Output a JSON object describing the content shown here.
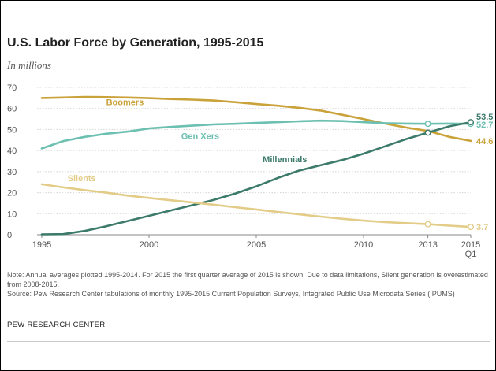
{
  "title": "U.S. Labor Force by Generation, 1995-2015",
  "subtitle": "In millions",
  "note": "Note: Annual averages plotted 1995-2014. For 2015 the first quarter average of 2015 is shown. Due to data limitations, Silent generation is overestimated from 2008-2015.",
  "source": "Source: Pew Research Center tabulations of monthly 1995-2015 Current Population Surveys, Integrated Public Use Microdata Series (IPUMS)",
  "credit": "PEW RESEARCH CENTER",
  "colors": {
    "boomers": "#c9a23a",
    "genx": "#6cc0b1",
    "millennials": "#3c7a6a",
    "silents": "#e2cc87",
    "grid": "#d4d4d4",
    "axis_text": "#555555"
  },
  "chart_data": {
    "type": "line",
    "xlim": [
      1995,
      2015
    ],
    "ylim": [
      0,
      70
    ],
    "y_ticks": [
      0,
      10,
      20,
      30,
      40,
      50,
      60,
      70
    ],
    "x_ticks": [
      {
        "value": 1995,
        "label": "1995",
        "sub": ""
      },
      {
        "value": 2000,
        "label": "2000",
        "sub": ""
      },
      {
        "value": 2005,
        "label": "2005",
        "sub": ""
      },
      {
        "value": 2010,
        "label": "2010",
        "sub": ""
      },
      {
        "value": 2013,
        "label": "2013",
        "sub": ""
      },
      {
        "value": 2015,
        "label": "2015",
        "sub": "Q1"
      }
    ],
    "grid": true,
    "series": [
      {
        "name": "Boomers",
        "color_key": "boomers",
        "label": {
          "x": 1998,
          "y": 61.5
        },
        "end_label": "44.6",
        "end_marker": false,
        "points": [
          [
            1995,
            65
          ],
          [
            1996,
            65.2
          ],
          [
            1997,
            65.5
          ],
          [
            1998,
            65.4
          ],
          [
            1999,
            65.2
          ],
          [
            2000,
            64.9
          ],
          [
            2001,
            64.5
          ],
          [
            2002,
            64.2
          ],
          [
            2003,
            63.8
          ],
          [
            2004,
            63
          ],
          [
            2005,
            62.1
          ],
          [
            2006,
            61.3
          ],
          [
            2007,
            60.3
          ],
          [
            2008,
            59
          ],
          [
            2009,
            57
          ],
          [
            2010,
            55
          ],
          [
            2011,
            52.8
          ],
          [
            2012,
            50.9
          ],
          [
            2013,
            49.3
          ],
          [
            2014,
            46.5
          ],
          [
            2015,
            44.6
          ]
        ]
      },
      {
        "name": "Gen Xers",
        "color_key": "genx",
        "label": {
          "x": 2001.5,
          "y": 45.5
        },
        "end_label": "52.7",
        "end_marker": true,
        "marker_2013": 52.7,
        "points": [
          [
            1995,
            41
          ],
          [
            1996,
            44.5
          ],
          [
            1997,
            46.5
          ],
          [
            1998,
            48
          ],
          [
            1999,
            49
          ],
          [
            2000,
            50.5
          ],
          [
            2001,
            51.2
          ],
          [
            2002,
            51.8
          ],
          [
            2003,
            52.4
          ],
          [
            2004,
            52.7
          ],
          [
            2005,
            53.1
          ],
          [
            2006,
            53.5
          ],
          [
            2007,
            53.9
          ],
          [
            2008,
            54.2
          ],
          [
            2009,
            54
          ],
          [
            2010,
            53.5
          ],
          [
            2011,
            53
          ],
          [
            2012,
            52.8
          ],
          [
            2013,
            52.7
          ],
          [
            2014,
            52.8
          ],
          [
            2015,
            52.7
          ]
        ]
      },
      {
        "name": "Millennials",
        "color_key": "millennials",
        "label": {
          "x": 2005.3,
          "y": 34.5
        },
        "end_label": "53.5",
        "end_marker": true,
        "marker_2013": 48.5,
        "points": [
          [
            1995,
            0.2
          ],
          [
            1996,
            0.3
          ],
          [
            1997,
            1.8
          ],
          [
            1998,
            4
          ],
          [
            1999,
            6.5
          ],
          [
            2000,
            9
          ],
          [
            2001,
            11.5
          ],
          [
            2002,
            14
          ],
          [
            2003,
            16.5
          ],
          [
            2004,
            19.5
          ],
          [
            2005,
            23
          ],
          [
            2006,
            27
          ],
          [
            2007,
            30.5
          ],
          [
            2008,
            33
          ],
          [
            2009,
            35.5
          ],
          [
            2010,
            38.5
          ],
          [
            2011,
            42
          ],
          [
            2012,
            45.5
          ],
          [
            2013,
            48.5
          ],
          [
            2014,
            51.5
          ],
          [
            2015,
            53.5
          ]
        ]
      },
      {
        "name": "Silents",
        "color_key": "silents",
        "label": {
          "x": 1996.2,
          "y": 25.5
        },
        "end_label": "3.7",
        "end_marker": true,
        "marker_2013": 5.0,
        "points": [
          [
            1995,
            24
          ],
          [
            1996,
            22.5
          ],
          [
            1997,
            21.2
          ],
          [
            1998,
            20
          ],
          [
            1999,
            18.6
          ],
          [
            2000,
            17.5
          ],
          [
            2001,
            16.4
          ],
          [
            2002,
            15.4
          ],
          [
            2003,
            14.3
          ],
          [
            2004,
            13.1
          ],
          [
            2005,
            12
          ],
          [
            2006,
            10.8
          ],
          [
            2007,
            9.7
          ],
          [
            2008,
            8.6
          ],
          [
            2009,
            7.6
          ],
          [
            2010,
            6.7
          ],
          [
            2011,
            6
          ],
          [
            2012,
            5.5
          ],
          [
            2013,
            5
          ],
          [
            2014,
            4.3
          ],
          [
            2015,
            3.7
          ]
        ]
      }
    ]
  }
}
